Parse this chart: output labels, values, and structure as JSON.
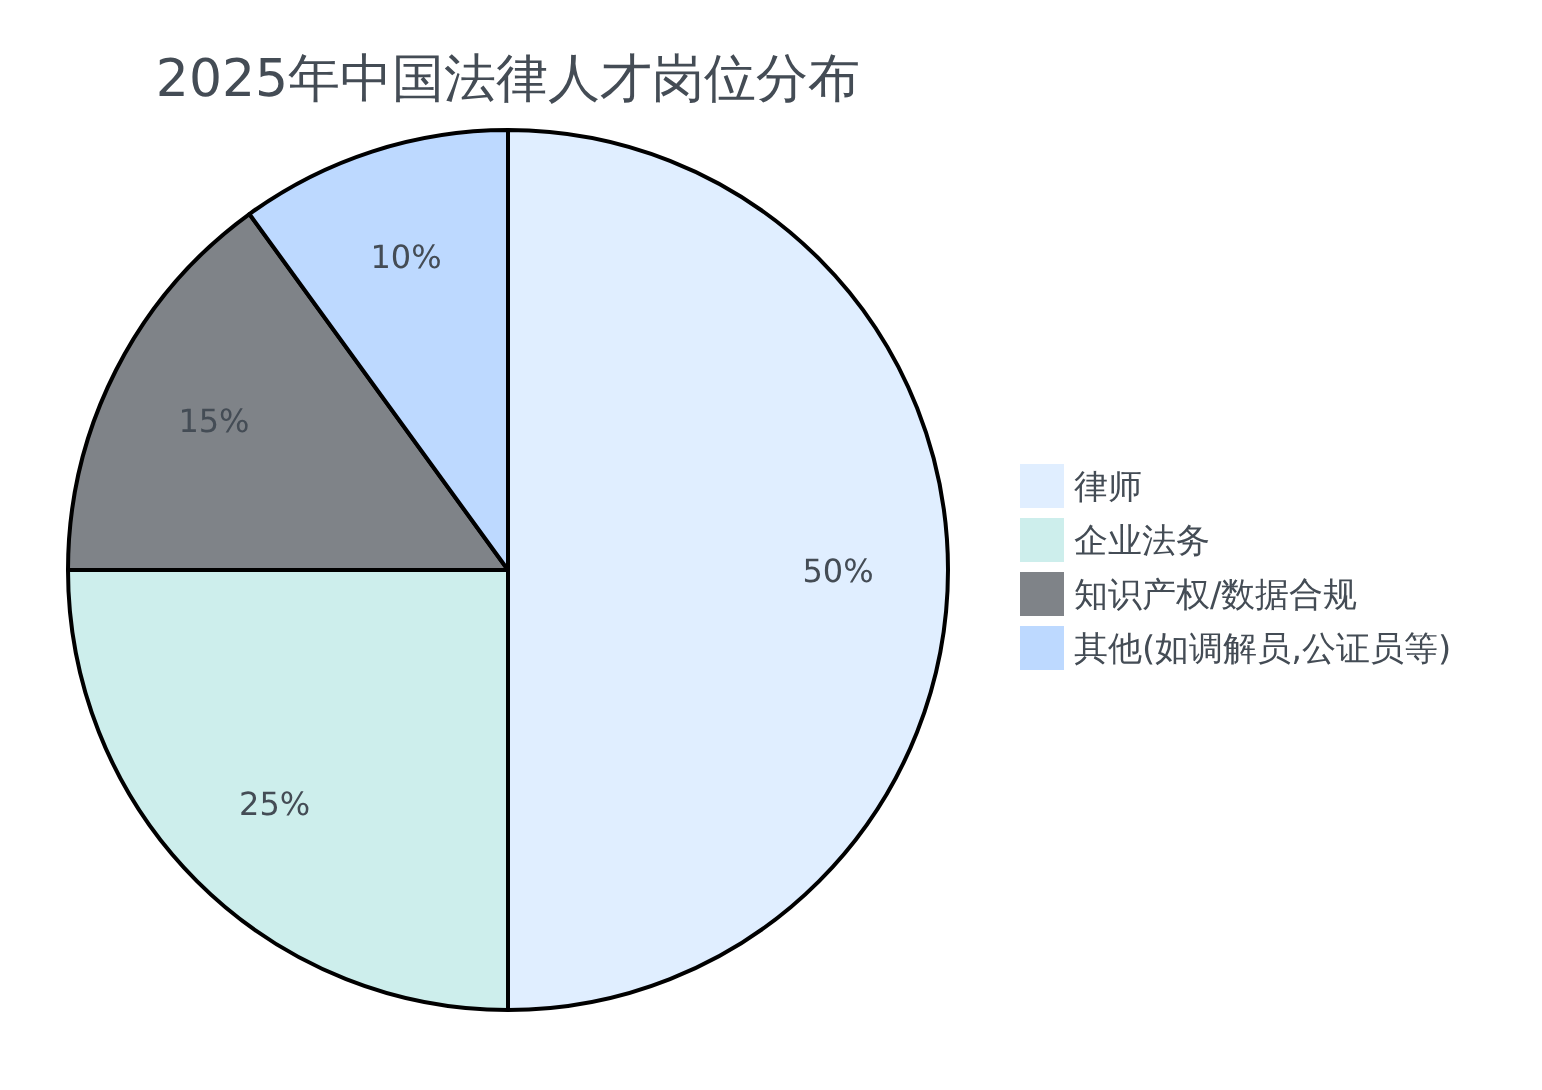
{
  "chart_data": {
    "type": "pie",
    "title": "2025年中国法律人才岗位分布",
    "categories": [
      "律师",
      "企业法务",
      "知识产权/数据合规",
      "其他(如调解员,公证员等)"
    ],
    "values": [
      50,
      25,
      15,
      10
    ],
    "colors": [
      "#e0eeff",
      "#cdeeec",
      "#7f8388",
      "#bdd9ff"
    ],
    "value_labels": [
      "50%",
      "25%",
      "15%",
      "10%"
    ],
    "legend": "right"
  }
}
